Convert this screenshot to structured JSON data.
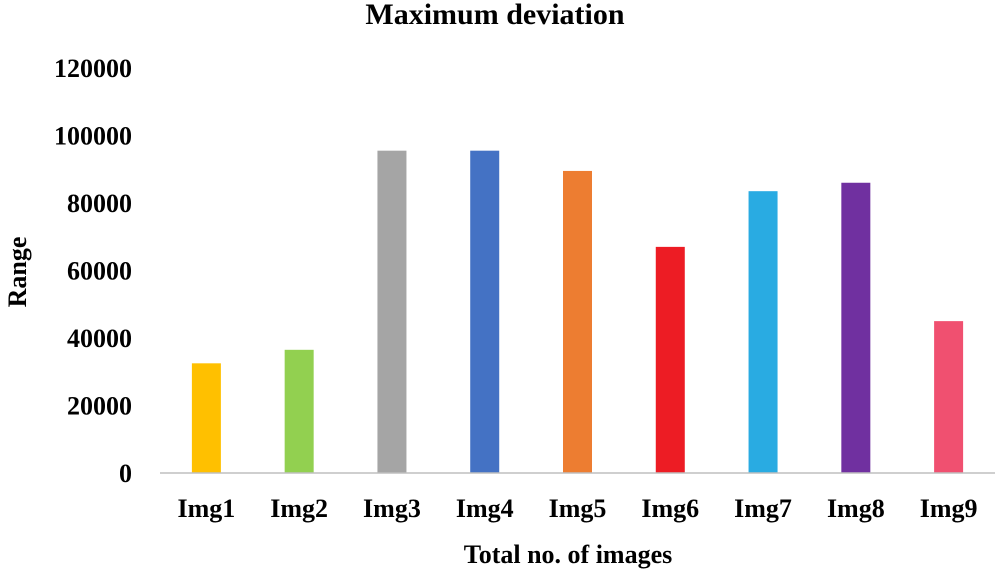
{
  "chart_data": {
    "type": "bar",
    "title": "Maximum deviation",
    "xlabel": "Total no. of images",
    "ylabel": "Range",
    "ylim": [
      0,
      120000
    ],
    "yticks": [
      0,
      20000,
      40000,
      60000,
      80000,
      100000,
      120000
    ],
    "grid": false,
    "legend": "none",
    "categories": [
      "Img1",
      "Img2",
      "Img3",
      "Img4",
      "Img5",
      "Img6",
      "Img7",
      "Img8",
      "Img9"
    ],
    "values": [
      32500,
      36500,
      95500,
      95500,
      89500,
      67000,
      83500,
      86000,
      45000
    ],
    "colors": [
      "#FFC000",
      "#92D050",
      "#A5A5A5",
      "#4472C4",
      "#ED7D31",
      "#ED1C24",
      "#29ABE2",
      "#7030A0",
      "#F05070"
    ]
  }
}
